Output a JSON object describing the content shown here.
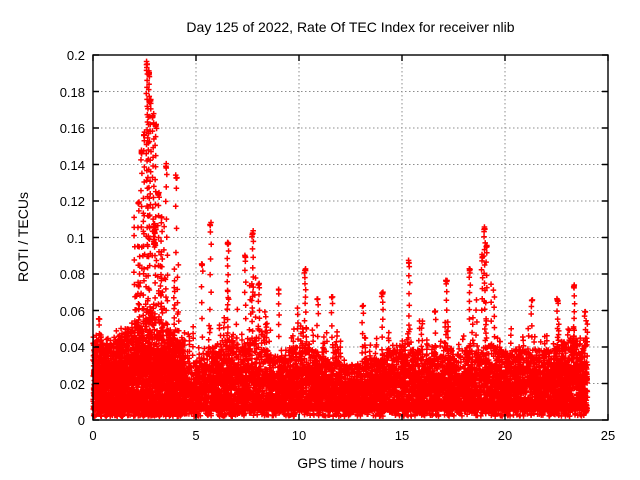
{
  "chart_data": {
    "type": "scatter",
    "title": "Day 125 of 2022, Rate Of TEC Index for receiver nlib",
    "xlabel": "GPS time / hours",
    "ylabel": "ROTI / TECUs",
    "xlim": [
      0,
      25
    ],
    "ylim": [
      0,
      0.2
    ],
    "xticks": [
      0,
      5,
      10,
      15,
      20,
      25
    ],
    "yticks": [
      0,
      0.02,
      0.04,
      0.06,
      0.08,
      0.1,
      0.12,
      0.14,
      0.16,
      0.18,
      0.2
    ],
    "grid": true,
    "marker": "plus",
    "colors": {
      "points": "#ff0000",
      "frame": "#000000",
      "grid": "#8c8c8c",
      "text": "#000000",
      "background": "#ffffff"
    },
    "x_data_range": [
      0,
      24
    ],
    "noise_floor": 0.004,
    "seed": 125,
    "envelope_bins": {
      "bin_width_hours": 0.5,
      "t_start": [
        0,
        0.5,
        1,
        1.5,
        2,
        2.5,
        3,
        3.5,
        4,
        4.5,
        5,
        5.5,
        6,
        6.5,
        7,
        7.5,
        8,
        8.5,
        9,
        9.5,
        10,
        10.5,
        11,
        11.5,
        12,
        12.5,
        13,
        13.5,
        14,
        14.5,
        15,
        15.5,
        16,
        16.5,
        17,
        17.5,
        18,
        18.5,
        19,
        19.5,
        20,
        20.5,
        21,
        21.5,
        22,
        22.5,
        23,
        23.5
      ],
      "max_roti": [
        0.056,
        0.05,
        0.055,
        0.062,
        0.165,
        0.196,
        0.163,
        0.14,
        0.134,
        0.075,
        0.086,
        0.108,
        0.093,
        0.098,
        0.09,
        0.103,
        0.078,
        0.072,
        0.072,
        0.08,
        0.083,
        0.075,
        0.068,
        0.068,
        0.055,
        0.058,
        0.063,
        0.065,
        0.07,
        0.065,
        0.087,
        0.072,
        0.06,
        0.068,
        0.078,
        0.065,
        0.083,
        0.09,
        0.106,
        0.068,
        0.065,
        0.062,
        0.066,
        0.063,
        0.06,
        0.066,
        0.074,
        0.062
      ],
      "dense_band_top": [
        0.046,
        0.042,
        0.046,
        0.05,
        0.056,
        0.06,
        0.056,
        0.05,
        0.045,
        0.03,
        0.034,
        0.04,
        0.044,
        0.047,
        0.042,
        0.045,
        0.04,
        0.037,
        0.035,
        0.04,
        0.042,
        0.04,
        0.034,
        0.032,
        0.03,
        0.031,
        0.034,
        0.034,
        0.039,
        0.041,
        0.044,
        0.039,
        0.034,
        0.037,
        0.04,
        0.036,
        0.042,
        0.04,
        0.044,
        0.039,
        0.038,
        0.04,
        0.04,
        0.038,
        0.04,
        0.043,
        0.046,
        0.043
      ],
      "point_density": [
        320,
        320,
        320,
        320,
        320,
        320,
        320,
        320,
        320,
        150,
        160,
        185,
        185,
        185,
        185,
        185,
        185,
        185,
        185,
        185,
        185,
        185,
        185,
        185,
        185,
        185,
        185,
        185,
        185,
        185,
        185,
        185,
        185,
        185,
        185,
        185,
        185,
        185,
        185,
        185,
        185,
        185,
        185,
        185,
        210,
        210,
        210,
        210
      ]
    },
    "notable_spikes": [
      {
        "x": 0.3,
        "y_min": 0.04,
        "y_max": 0.056,
        "n": 4
      },
      {
        "x": 2.2,
        "y_min": 0.06,
        "y_max": 0.12,
        "n": 7
      },
      {
        "x": 2.35,
        "y_min": 0.07,
        "y_max": 0.148,
        "n": 9
      },
      {
        "x": 2.48,
        "y_min": 0.08,
        "y_max": 0.158,
        "n": 10
      },
      {
        "x": 2.62,
        "y_min": 0.09,
        "y_max": 0.196,
        "n": 26
      },
      {
        "x": 2.7,
        "y_min": 0.1,
        "y_max": 0.192,
        "n": 22
      },
      {
        "x": 2.78,
        "y_min": 0.085,
        "y_max": 0.176,
        "n": 18
      },
      {
        "x": 2.92,
        "y_min": 0.09,
        "y_max": 0.168,
        "n": 16
      },
      {
        "x": 2.98,
        "y_min": 0.095,
        "y_max": 0.107,
        "n": 14
      },
      {
        "x": 3.05,
        "y_min": 0.08,
        "y_max": 0.162,
        "n": 14
      },
      {
        "x": 3.18,
        "y_min": 0.07,
        "y_max": 0.125,
        "n": 10
      },
      {
        "x": 3.32,
        "y_min": 0.06,
        "y_max": 0.112,
        "n": 9
      },
      {
        "x": 3.55,
        "y_min": 0.1,
        "y_max": 0.14,
        "n": 6
      },
      {
        "x": 4.05,
        "y_min": 0.092,
        "y_max": 0.134,
        "n": 5
      },
      {
        "x": 5.3,
        "y_min": 0.045,
        "y_max": 0.086,
        "n": 6
      },
      {
        "x": 5.7,
        "y_min": 0.05,
        "y_max": 0.108,
        "n": 8
      },
      {
        "x": 6.55,
        "y_min": 0.06,
        "y_max": 0.098,
        "n": 10
      },
      {
        "x": 7.4,
        "y_min": 0.055,
        "y_max": 0.09,
        "n": 7
      },
      {
        "x": 7.75,
        "y_min": 0.062,
        "y_max": 0.103,
        "n": 10
      },
      {
        "x": 8.05,
        "y_min": 0.05,
        "y_max": 0.075,
        "n": 7
      },
      {
        "x": 9.0,
        "y_min": 0.045,
        "y_max": 0.072,
        "n": 6
      },
      {
        "x": 10.3,
        "y_min": 0.055,
        "y_max": 0.083,
        "n": 9
      },
      {
        "x": 10.9,
        "y_min": 0.045,
        "y_max": 0.067,
        "n": 5
      },
      {
        "x": 11.6,
        "y_min": 0.045,
        "y_max": 0.068,
        "n": 5
      },
      {
        "x": 13.1,
        "y_min": 0.04,
        "y_max": 0.063,
        "n": 5
      },
      {
        "x": 14.05,
        "y_min": 0.045,
        "y_max": 0.07,
        "n": 7
      },
      {
        "x": 15.35,
        "y_min": 0.05,
        "y_max": 0.087,
        "n": 8
      },
      {
        "x": 16.6,
        "y_min": 0.04,
        "y_max": 0.06,
        "n": 4
      },
      {
        "x": 17.15,
        "y_min": 0.048,
        "y_max": 0.077,
        "n": 7
      },
      {
        "x": 18.3,
        "y_min": 0.055,
        "y_max": 0.083,
        "n": 8
      },
      {
        "x": 18.9,
        "y_min": 0.06,
        "y_max": 0.09,
        "n": 7
      },
      {
        "x": 19.0,
        "y_min": 0.06,
        "y_max": 0.106,
        "n": 12
      },
      {
        "x": 19.1,
        "y_min": 0.055,
        "y_max": 0.096,
        "n": 7
      },
      {
        "x": 21.3,
        "y_min": 0.045,
        "y_max": 0.066,
        "n": 5
      },
      {
        "x": 22.55,
        "y_min": 0.045,
        "y_max": 0.066,
        "n": 6
      },
      {
        "x": 23.35,
        "y_min": 0.05,
        "y_max": 0.074,
        "n": 7
      },
      {
        "x": 23.9,
        "y_min": 0.04,
        "y_max": 0.06,
        "n": 6
      }
    ]
  }
}
